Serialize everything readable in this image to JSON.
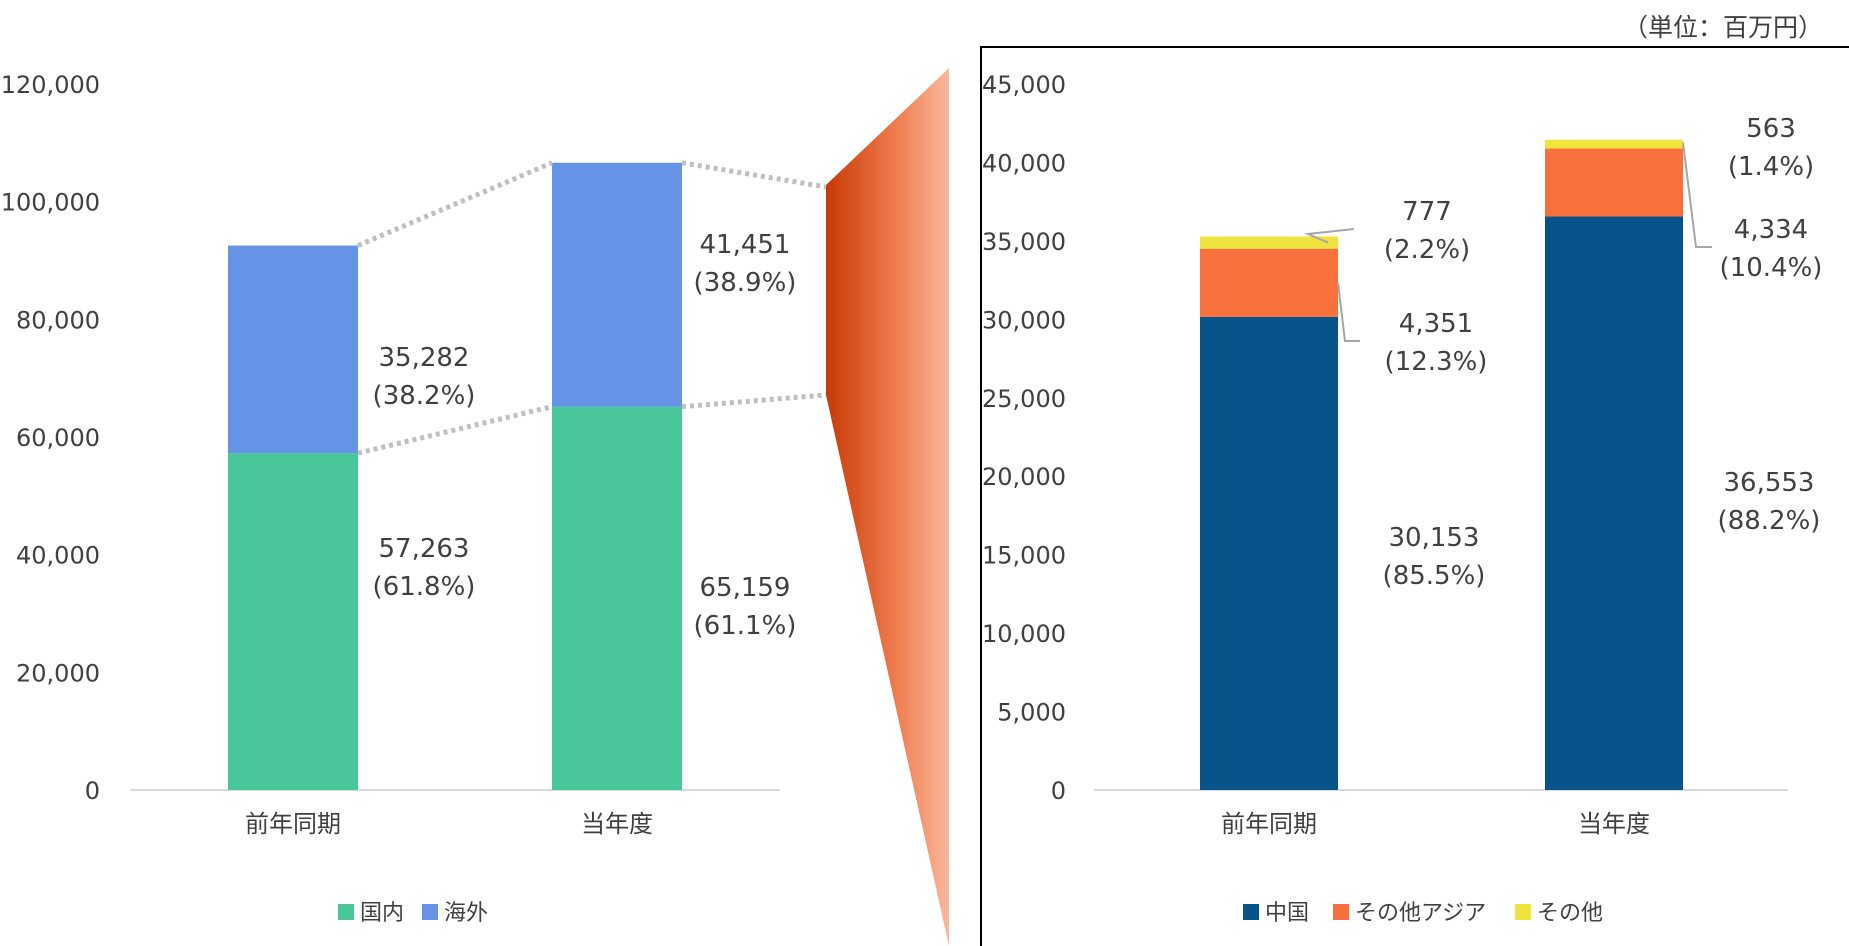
{
  "unit_note": "（単位：百万円）",
  "chart_data": [
    {
      "type": "bar",
      "stacked": true,
      "categories": [
        "前年同期",
        "当年度"
      ],
      "series": [
        {
          "name": "国内",
          "values": [
            57263,
            65159
          ],
          "color": "#48C79B",
          "labels": [
            "57,263\n(61.8%)",
            "65,159\n(61.1%)"
          ]
        },
        {
          "name": "海外",
          "values": [
            35282,
            41451
          ],
          "color": "#6594E6",
          "labels": [
            "35,282\n(38.2%)",
            "41,451\n(38.9%)"
          ]
        }
      ],
      "ylim": [
        0,
        120000
      ],
      "yticks": [
        "0",
        "20,000",
        "40,000",
        "60,000",
        "80,000",
        "100,000",
        "120,000"
      ],
      "grid": false,
      "legend": "bottom"
    },
    {
      "type": "bar",
      "stacked": true,
      "categories": [
        "前年同期",
        "当年度"
      ],
      "series": [
        {
          "name": "中国",
          "values": [
            30153,
            36553
          ],
          "color": "#07548A",
          "labels": [
            "30,153\n(85.5%)",
            "36,553\n(88.2%)"
          ]
        },
        {
          "name": "その他アジア",
          "values": [
            4351,
            4334
          ],
          "color": "#F8703B",
          "labels": [
            "4,351\n(12.3%)",
            "4,334\n(10.4%)"
          ]
        },
        {
          "name": "その他",
          "values": [
            777,
            563
          ],
          "color": "#EEE43D",
          "labels": [
            "777\n(2.2%)",
            "563\n(1.4%)"
          ]
        }
      ],
      "ylim": [
        0,
        45000
      ],
      "yticks": [
        "0",
        "5,000",
        "10,000",
        "15,000",
        "20,000",
        "25,000",
        "30,000",
        "35,000",
        "40,000",
        "45,000"
      ],
      "grid": false,
      "legend": "bottom"
    }
  ]
}
